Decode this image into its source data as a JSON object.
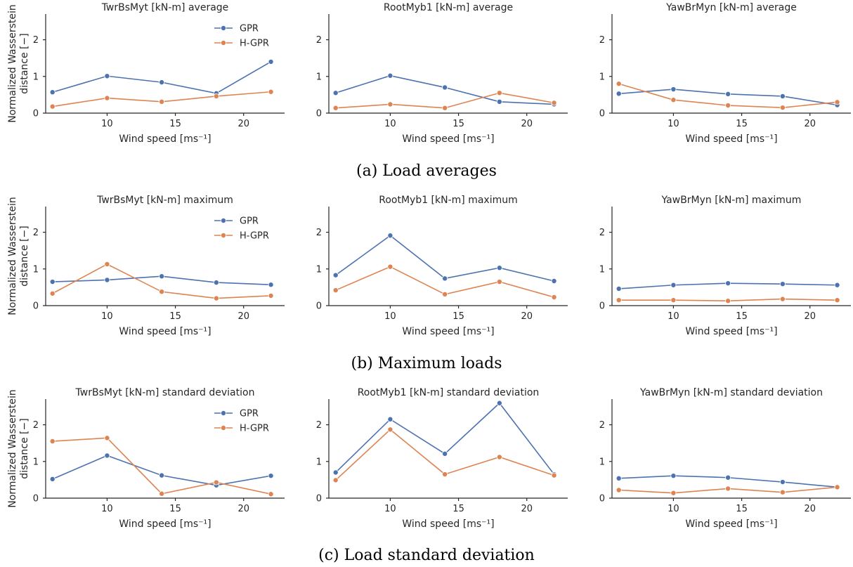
{
  "colors": {
    "GPR": "#4c72b0",
    "H-GPR": "#dd8452",
    "axis": "#262626"
  },
  "y_axis_label": [
    "Normalized Wasserstein",
    "distance [−]"
  ],
  "x_axis_label": "Wind speed [ms⁻¹]",
  "x_ticks": [
    10,
    15,
    20
  ],
  "y_ticks": [
    0,
    1,
    2
  ],
  "legend": [
    "GPR",
    "H-GPR"
  ],
  "captions": [
    "(a) Load averages",
    "(b) Maximum loads",
    "(c) Load standard deviation"
  ],
  "chart_data": [
    {
      "type": "line",
      "row": 0,
      "col": 0,
      "title": "TwrBsMyt [kN-m] average",
      "xlabel": "Wind speed [ms⁻¹]",
      "ylabel": "Normalized Wasserstein distance [−]",
      "xlim": [
        5.5,
        23
      ],
      "ylim": [
        0,
        2.7
      ],
      "legend": "top-right",
      "grid": false,
      "x": [
        6,
        10,
        14,
        18,
        22
      ],
      "series": [
        {
          "name": "GPR",
          "values": [
            0.57,
            1.01,
            0.84,
            0.54,
            1.4
          ]
        },
        {
          "name": "H-GPR",
          "values": [
            0.18,
            0.41,
            0.31,
            0.46,
            0.58
          ]
        }
      ]
    },
    {
      "type": "line",
      "row": 0,
      "col": 1,
      "title": "RootMyb1 [kN-m] average",
      "xlabel": "Wind speed [ms⁻¹]",
      "ylabel": "",
      "xlim": [
        5.5,
        23
      ],
      "ylim": [
        0,
        2.7
      ],
      "grid": false,
      "x": [
        6,
        10,
        14,
        18,
        22
      ],
      "series": [
        {
          "name": "GPR",
          "values": [
            0.55,
            1.02,
            0.7,
            0.31,
            0.24
          ]
        },
        {
          "name": "H-GPR",
          "values": [
            0.14,
            0.24,
            0.14,
            0.55,
            0.28
          ]
        }
      ]
    },
    {
      "type": "line",
      "row": 0,
      "col": 2,
      "title": "YawBrMyn [kN-m] average",
      "xlabel": "Wind speed [ms⁻¹]",
      "ylabel": "",
      "xlim": [
        5.5,
        23
      ],
      "ylim": [
        0,
        2.7
      ],
      "grid": false,
      "x": [
        6,
        10,
        14,
        18,
        22
      ],
      "series": [
        {
          "name": "GPR",
          "values": [
            0.53,
            0.65,
            0.52,
            0.46,
            0.22
          ]
        },
        {
          "name": "H-GPR",
          "values": [
            0.8,
            0.36,
            0.21,
            0.15,
            0.3
          ]
        }
      ]
    },
    {
      "type": "line",
      "row": 1,
      "col": 0,
      "title": "TwrBsMyt [kN-m] maximum",
      "xlabel": "Wind speed [ms⁻¹]",
      "ylabel": "Normalized Wasserstein distance [−]",
      "xlim": [
        5.5,
        23
      ],
      "ylim": [
        0,
        2.7
      ],
      "legend": "top-right",
      "grid": false,
      "x": [
        6,
        10,
        14,
        18,
        22
      ],
      "series": [
        {
          "name": "GPR",
          "values": [
            0.65,
            0.7,
            0.8,
            0.63,
            0.57
          ]
        },
        {
          "name": "H-GPR",
          "values": [
            0.33,
            1.13,
            0.38,
            0.2,
            0.27
          ]
        }
      ]
    },
    {
      "type": "line",
      "row": 1,
      "col": 1,
      "title": "RootMyb1 [kN-m] maximum",
      "xlabel": "Wind speed [ms⁻¹]",
      "ylabel": "",
      "xlim": [
        5.5,
        23
      ],
      "ylim": [
        0,
        2.7
      ],
      "grid": false,
      "x": [
        6,
        10,
        14,
        18,
        22
      ],
      "series": [
        {
          "name": "GPR",
          "values": [
            0.83,
            1.91,
            0.74,
            1.03,
            0.67
          ]
        },
        {
          "name": "H-GPR",
          "values": [
            0.42,
            1.06,
            0.31,
            0.65,
            0.23
          ]
        }
      ]
    },
    {
      "type": "line",
      "row": 1,
      "col": 2,
      "title": "YawBrMyn [kN-m] maximum",
      "xlabel": "Wind speed [ms⁻¹]",
      "ylabel": "",
      "xlim": [
        5.5,
        23
      ],
      "ylim": [
        0,
        2.7
      ],
      "grid": false,
      "x": [
        6,
        10,
        14,
        18,
        22
      ],
      "series": [
        {
          "name": "GPR",
          "values": [
            0.46,
            0.56,
            0.61,
            0.59,
            0.56
          ]
        },
        {
          "name": "H-GPR",
          "values": [
            0.15,
            0.15,
            0.13,
            0.18,
            0.15
          ]
        }
      ]
    },
    {
      "type": "line",
      "row": 2,
      "col": 0,
      "title": "TwrBsMyt [kN-m] standard deviation",
      "xlabel": "Wind speed [ms⁻¹]",
      "ylabel": "Normalized Wasserstein distance [−]",
      "xlim": [
        5.5,
        23
      ],
      "ylim": [
        0,
        2.7
      ],
      "legend": "top-right",
      "grid": false,
      "x": [
        6,
        10,
        14,
        18,
        22
      ],
      "series": [
        {
          "name": "GPR",
          "values": [
            0.52,
            1.16,
            0.62,
            0.35,
            0.61
          ]
        },
        {
          "name": "H-GPR",
          "values": [
            1.55,
            1.64,
            0.12,
            0.43,
            0.11
          ]
        }
      ]
    },
    {
      "type": "line",
      "row": 2,
      "col": 1,
      "title": "RootMyb1 [kN-m] standard deviation",
      "xlabel": "Wind speed [ms⁻¹]",
      "ylabel": "",
      "xlim": [
        5.5,
        23
      ],
      "ylim": [
        0,
        2.7
      ],
      "grid": false,
      "x": [
        6,
        10,
        14,
        18,
        22
      ],
      "series": [
        {
          "name": "GPR",
          "values": [
            0.7,
            2.15,
            1.21,
            2.59,
            0.65
          ]
        },
        {
          "name": "H-GPR",
          "values": [
            0.49,
            1.87,
            0.65,
            1.12,
            0.62
          ]
        }
      ]
    },
    {
      "type": "line",
      "row": 2,
      "col": 2,
      "title": "YawBrMyn [kN-m] standard deviation",
      "xlabel": "Wind speed [ms⁻¹]",
      "ylabel": "",
      "xlim": [
        5.5,
        23
      ],
      "ylim": [
        0,
        2.7
      ],
      "grid": false,
      "x": [
        6,
        10,
        14,
        18,
        22
      ],
      "series": [
        {
          "name": "GPR",
          "values": [
            0.54,
            0.61,
            0.56,
            0.44,
            0.3
          ]
        },
        {
          "name": "H-GPR",
          "values": [
            0.22,
            0.14,
            0.26,
            0.16,
            0.3
          ]
        }
      ]
    }
  ]
}
